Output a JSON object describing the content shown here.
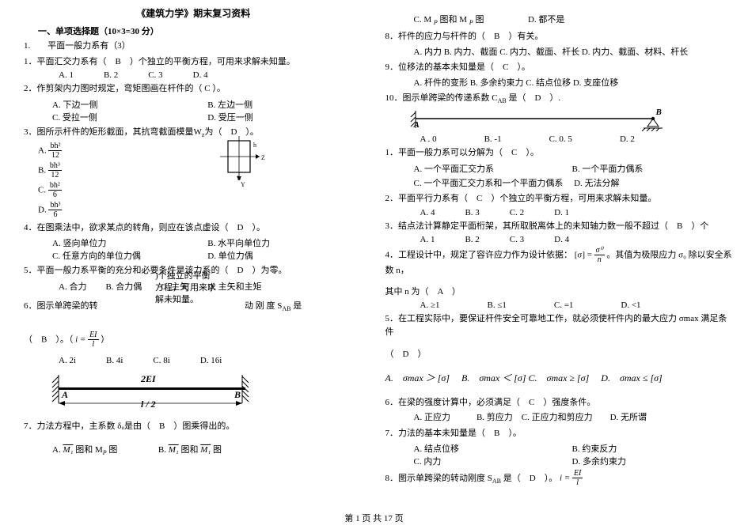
{
  "doc": {
    "title": "《建筑力学》期末复习资料",
    "sectionTitle": "一、单项选择题（10×3=30 分）",
    "footer": "第 1 页 共 17 页"
  },
  "floatbox": {
    "l1": ")个独立的平衡",
    "l2": "方程，可用来求",
    "l3": "解未知量。"
  },
  "left": {
    "q0": "1.　　平面一般力系有（3）",
    "q1": "1．平面汇交力系有（　B　）个独立的平衡方程，可用来求解未知量。",
    "q1o": {
      "a": "A. 1",
      "b": "B. 2",
      "c": "C. 3",
      "d": "D. 4"
    },
    "q2": "2．作剪架内力图时规定，弯矩图画在杆件的（ C ）。",
    "q2a": "A. 下边一侧",
    "q2b": "B. 左边一侧",
    "q2c": "C. 受拉一侧",
    "q2d": "D. 受压一侧",
    "q3": "3．图所示杆件的矩形截面，其抗弯截面模量W<sub>z</sub>为（　D　）。",
    "q3a": "A.",
    "q3b": "B.",
    "q3c": "C.",
    "q3d": "D.",
    "q3fa_n": "bh²",
    "q3fa_d": "12",
    "q3fb_n": "bh³",
    "q3fb_d": "12",
    "q3fc_n": "bh²",
    "q3fc_d": "6",
    "q3fd_n": "bh³",
    "q3fd_d": "6",
    "q4": "4．在图乘法中，欲求某点的转角，则应在该点虚设（　D　）。",
    "q4a": "A. 竖向单位力",
    "q4b": "B. 水平向单位力",
    "q4c": "C. 任意方向的单位力偶",
    "q4d": "D. 单位力偶",
    "q5": "5．平面一般力系平衡的充分和必要条件是该力系的（　D　）为零。",
    "q5a": "A. 合力",
    "q5b": "B. 合力偶",
    "q5c": "C. 主矢",
    "q5d": "D. 主矢和主矩",
    "q6a": "6．图示单跨梁的转",
    "q6b": "动 刚 度 S<sub>AB</sub> 是",
    "q6c": "（　B　）。（",
    "q6d": "）",
    "q6frac_n": "EI",
    "q6frac_d": "l",
    "q6i": "i =",
    "q6oa": "A. 2i",
    "q6ob": "B. 4i",
    "q6oc": "C. 8i",
    "q6od": "D. 16i",
    "beam_2ei": "2EI",
    "beam_A": "A",
    "beam_B": "B",
    "beam_l2": "l / 2",
    "q7": "7．力法方程中，主系数 δᵢᵢ是由（　B　）图乘得出的。",
    "q7a_pre": "A.  ",
    "q7a_m1": "M₁",
    "q7a_mid": " 图和 M",
    "q7a_p": "P",
    "q7a_suf": " 图",
    "q7b_pre": "B.  ",
    "q7b_m1": "M₁",
    "q7b_mid": " 图和 ",
    "q7b_m2": "M₁",
    "q7b_suf": " 图"
  },
  "right": {
    "q7c_pre": "C.  M ",
    "q7c_p": "P",
    "q7c_mid": " 图和 M ",
    "q7c_p2": "P",
    "q7c_suf": " 图",
    "q7d": "D. 都不是",
    "q8": "8．杆件的应力与杆件的（　B　）有关。",
    "q8a": "A. 内力 B. 内力、截面 C. 内力、截面、杆长 D. 内力、截面、材料、杆长",
    "q9": "9．位移法的基本未知量是（　C　）。",
    "q9o": "A. 杆件的变形 B. 多余约束力 C. 结点位移 D. 支座位移",
    "q10": "10．图示单跨梁的传递系数 C<sub>AB</sub> 是（　D　）.",
    "ab_A": "A",
    "ab_B": "B",
    "q10o": {
      "a": "A . 0",
      "b": "B. -1",
      "c": "C.  0. 5",
      "d": "D. 2"
    },
    "r1": "1．平面一般力系可以分解为（　C　）。",
    "r1a": "A. 一个平面汇交力系",
    "r1b": "B. 一个平面力偶系",
    "r1c": "C. 一个平面汇交力系和一个平面力偶系",
    "r1d": "D. 无法分解",
    "r2": "2．平面平行力系有（　C　）个独立的平衡方程，可用来求解未知量。",
    "r2o": {
      "a": "A. 4",
      "b": "B. 3",
      "c": "C. 2",
      "d": "D. 1"
    },
    "r3": "3．结点法计算静定平面桁架，其所取脱离体上的未知轴力数一般不超过（　B　）个",
    "r3o": {
      "a": "A. 1",
      "b": "B. 2",
      "c": "C. 3",
      "d": "D. 4"
    },
    "r4a": "4．工程设计中，规定了容许应力作为设计依据：",
    "r4b": "。其值为极限应力 σ₀ 除以安全系数 n，",
    "r4_br_l": "[σ] =",
    "r4_num": "σ⁰",
    "r4_den": "n",
    "r4c": "其中 n 为（　A　）",
    "r4o": {
      "a": "A.  ≥1",
      "b": "B.  ≤1",
      "c": "C.  =1",
      "d": "D.  <1"
    },
    "r5": "5．在工程实际中，要保证杆件安全可靠地工作，就必须使杆件内的最大应力 σmax 满足条件",
    "r5b": "（　D　）",
    "r5oa": "A.　σmax ＞ [σ]",
    "r5ob": "B.　σmax ＜ [σ]",
    "r5oc": "C.　σmax ≥ [σ]",
    "r5od": "D.　σmax ≤ [σ]",
    "r6": "6．在梁的强度计算中，必须满足（　C　）强度条件。",
    "r6o": "A. 正应力　　　B. 剪应力　C. 正应力和剪应力　　D. 无所谓",
    "r7": "7．力法的基本未知量是（　B　）。",
    "r7a": "A. 结点位移",
    "r7b": "B. 约束反力",
    "r7c": "C. 内力",
    "r7d": "D. 多余约束力",
    "r8": "8．图示单跨梁的转动刚度 S<sub>AB</sub> 是（　D　）。",
    "r8i": "i =",
    "r8n": "EI",
    "r8d": "l"
  }
}
